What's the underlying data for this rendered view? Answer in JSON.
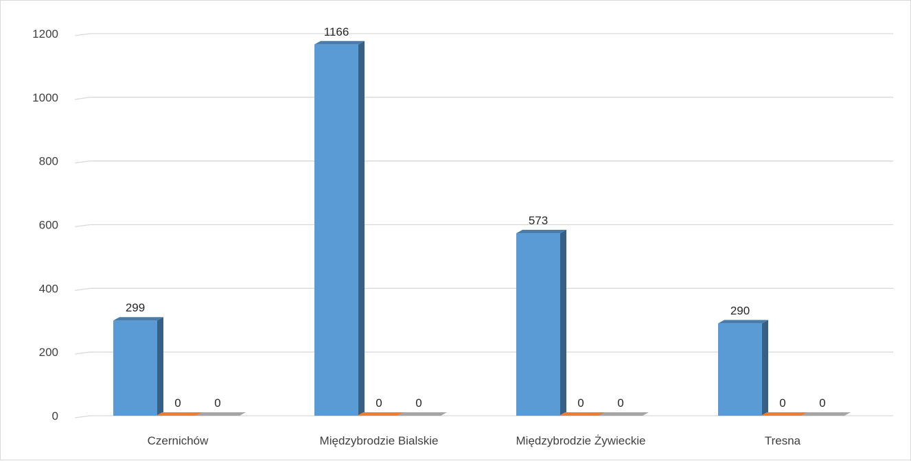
{
  "chart_data": {
    "type": "bar",
    "categories": [
      "Czernichów",
      "Międzybrodzie Bialskie",
      "Międzybrodzie Żywieckie",
      "Tresna"
    ],
    "series": [
      {
        "values": [
          299,
          1166,
          573,
          290
        ],
        "color": "#5b9bd5",
        "show_labels": true
      },
      {
        "values": [
          0,
          0,
          0,
          0
        ],
        "color": "#ed7d31",
        "show_labels": true
      },
      {
        "values": [
          0,
          0,
          0,
          0
        ],
        "color": "#a5a5a5",
        "show_labels": true
      }
    ],
    "yticks": [
      0,
      200,
      400,
      600,
      800,
      1000,
      1200
    ],
    "ylim": [
      0,
      1200
    ],
    "grid": true,
    "style": "3d-clustered-column",
    "legend": "none"
  }
}
